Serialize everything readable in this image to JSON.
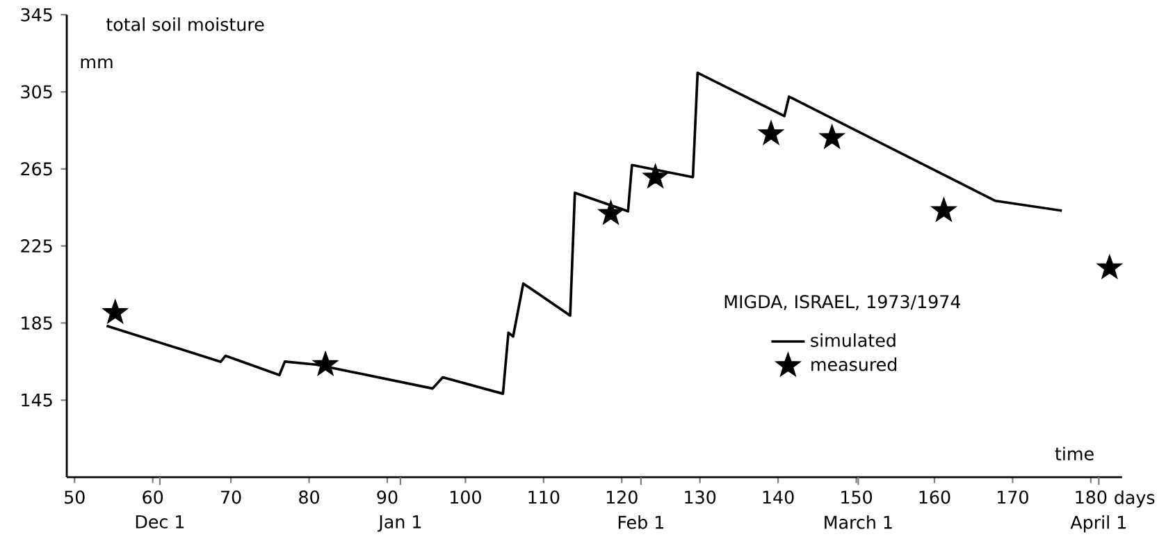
{
  "chart_data": {
    "type": "line",
    "title": "total soil moisture",
    "ylabel": "mm",
    "xlabel": "time",
    "annotations": [
      "MIGDA, ISRAEL, 1973/1974",
      "days"
    ],
    "x2lim": [
      "1973-11-19",
      "1974-04-04"
    ],
    "x2ticks": [
      {
        "value": "1973-12-01",
        "label": "Dec 1"
      },
      {
        "value": "1974-01-01",
        "label": "Jan 1"
      },
      {
        "value": "1974-02-01",
        "label": "Feb 1"
      },
      {
        "value": "1974-03-01",
        "label": "March 1"
      },
      {
        "value": "1974-04-01",
        "label": "April 1"
      }
    ],
    "xlim": [
      49,
      184
    ],
    "ylim": [
      105,
      345
    ],
    "xticks": [
      50,
      60,
      70,
      80,
      90,
      100,
      110,
      120,
      130,
      140,
      150,
      160,
      170,
      180
    ],
    "yticks": [
      145,
      185,
      225,
      265,
      305,
      345
    ],
    "legend": "right",
    "grid": false,
    "series": [
      {
        "name": "simulated",
        "type": "line",
        "color": "#000000",
        "line_style": "solid",
        "marker": "none",
        "x": [
          54.1,
          68.7,
          69.3,
          76.2,
          76.9,
          80.9,
          95.8,
          97.1,
          104.8,
          105.5,
          106.1,
          107.4,
          113.4,
          114,
          120.8,
          121.3,
          129.1,
          129.7,
          140.8,
          141.4,
          167.8,
          176.3
        ],
        "values": [
          183.5,
          164.9,
          168,
          158,
          165,
          163.4,
          151,
          156.8,
          148.3,
          180,
          178,
          205.5,
          188.9,
          252.6,
          243,
          267,
          260.7,
          314.9,
          292.4,
          302.5,
          248.4,
          243.3
        ]
      },
      {
        "name": "measured",
        "type": "scatter",
        "color": "#000000",
        "marker": "star",
        "x": [
          55.2,
          82.1,
          118.6,
          124.3,
          139.1,
          146.9,
          161.2,
          182.4
        ],
        "values": [
          190.4,
          163.4,
          241.8,
          260.7,
          283.2,
          281.2,
          243.3,
          213.6
        ]
      }
    ]
  }
}
